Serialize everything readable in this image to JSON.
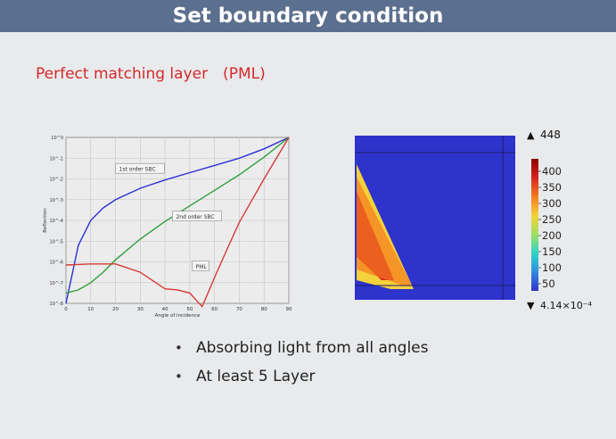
{
  "header": {
    "title": "Set boundary condition"
  },
  "section": {
    "subtitle": "Perfect matching layer　(PML)"
  },
  "chart_data": [
    {
      "type": "line",
      "title": "",
      "xlabel": "Angle of incidence",
      "ylabel": "Reflection",
      "xlim": [
        0,
        90
      ],
      "ylim": [
        -8,
        0
      ],
      "y_scale": "log",
      "grid": true,
      "x_ticks": [
        "0",
        "10",
        "20",
        "30",
        "40",
        "50",
        "60",
        "70",
        "80",
        "90"
      ],
      "y_ticks": [
        "10^0",
        "10^-1",
        "10^-2",
        "10^-3",
        "10^-4",
        "10^-5",
        "10^-6",
        "10^-7",
        "10^-8"
      ],
      "series": [
        {
          "name": "1st order SBC",
          "color": "#2b2fd6",
          "x": [
            0,
            5,
            10,
            15,
            20,
            30,
            40,
            50,
            60,
            70,
            80,
            90
          ],
          "log10_y": [
            -8,
            -5.2,
            -4.0,
            -3.4,
            -3.0,
            -2.45,
            -2.05,
            -1.7,
            -1.35,
            -1.0,
            -0.55,
            0
          ]
        },
        {
          "name": "2nd order SBC",
          "color": "#2f9e3c",
          "x": [
            0,
            5,
            10,
            15,
            20,
            30,
            40,
            50,
            60,
            70,
            80,
            90
          ],
          "log10_y": [
            -7.5,
            -7.35,
            -7.0,
            -6.5,
            -5.9,
            -4.9,
            -4.05,
            -3.3,
            -2.55,
            -1.8,
            -0.95,
            0
          ]
        },
        {
          "name": "PML",
          "color": "#d63a35",
          "x": [
            0,
            10,
            20,
            30,
            35,
            40,
            45,
            50,
            53,
            55,
            57,
            60,
            65,
            70,
            80,
            90
          ],
          "log10_y": [
            -6.15,
            -6.1,
            -6.1,
            -6.5,
            -6.9,
            -7.3,
            -7.35,
            -7.5,
            -7.9,
            -8.15,
            -7.6,
            -6.75,
            -5.4,
            -4.1,
            -2.0,
            0
          ]
        }
      ],
      "annotations": [
        "1st order SBC",
        "2nd order SBC",
        "PML"
      ],
      "axis_color": "#444444"
    },
    {
      "type": "heatmap",
      "colorbar": {
        "max_label": "448",
        "min_label": "4.14×10⁻⁴",
        "ticks": [
          "400",
          "350",
          "300",
          "250",
          "200",
          "150",
          "100",
          "50"
        ],
        "colors": [
          "#8b0000",
          "#d8241f",
          "#f57b1f",
          "#f3d23a",
          "#9fe062",
          "#2fd3c7",
          "#2f8de0",
          "#3234c8"
        ]
      },
      "background_color": "#2e33cc"
    }
  ],
  "bullets": [
    {
      "symbol": "•",
      "text": "Absorbing light from all angles"
    },
    {
      "symbol": "•",
      "text": "At least 5 Layer"
    }
  ]
}
